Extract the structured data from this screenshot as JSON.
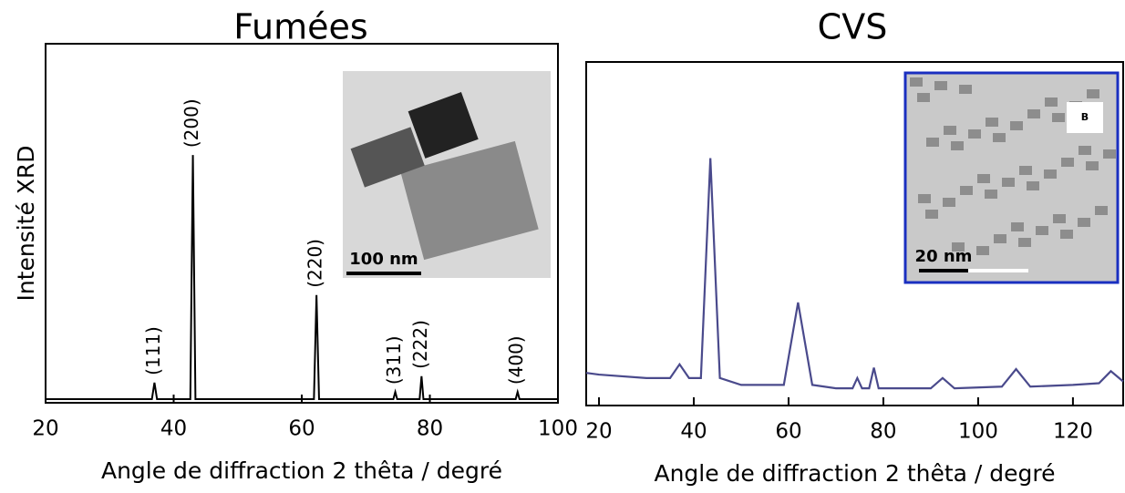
{
  "chart_data": [
    {
      "type": "line",
      "title": "Fumées",
      "x_label": "Angle de diffraction 2 thêta / degré",
      "y_label": "Intensité XRD",
      "xlim": [
        20,
        100
      ],
      "xticks": [
        20,
        40,
        60,
        80,
        100
      ],
      "ylim": [
        0,
        100
      ],
      "series": [
        {
          "color": "#000000",
          "x": [
            20,
            36.6,
            37,
            37.4,
            42.6,
            43,
            43.4,
            61.9,
            62.3,
            62.7,
            74.3,
            74.6,
            74.9,
            78.4,
            78.7,
            79.0,
            93.4,
            93.7,
            94.0,
            100
          ],
          "values": [
            1,
            1,
            5.6,
            1,
            1,
            69,
            1,
            1,
            30,
            1,
            1,
            3,
            1,
            1,
            7.4,
            1,
            1,
            3,
            1,
            1
          ]
        }
      ],
      "annotations": [
        {
          "text": "(111)",
          "x": 37
        },
        {
          "text": "(200)",
          "x": 43
        },
        {
          "text": "(220)",
          "x": 62.3
        },
        {
          "text": "(311)",
          "x": 74.6
        },
        {
          "text": "(222)",
          "x": 78.7
        },
        {
          "text": "(400)",
          "x": 93.7
        }
      ],
      "inset_scale_bar": "100 nm"
    },
    {
      "type": "line",
      "title": "CVS",
      "x_label": "Angle de diffraction 2 thêta / degré",
      "xlim": [
        17.3,
        130.6
      ],
      "xticks": [
        20,
        40,
        60,
        80,
        100,
        120
      ],
      "ylim": [
        0,
        100
      ],
      "series": [
        {
          "color": "#4a4a8c",
          "x": [
            17.3,
            20,
            30,
            35,
            37,
            39,
            41.5,
            43.5,
            45.5,
            50,
            59,
            62,
            65,
            70,
            73.5,
            74.5,
            75.5,
            77,
            78,
            79,
            90,
            92.5,
            95,
            105,
            108,
            111,
            120,
            125.5,
            128,
            130.6
          ],
          "values": [
            9.5,
            9,
            8,
            8,
            12,
            8,
            8,
            72,
            8,
            6,
            6,
            30,
            6,
            5,
            5,
            8,
            5,
            5,
            11,
            5,
            5,
            8,
            5,
            5.5,
            10.6,
            5.5,
            6,
            6.5,
            10,
            7
          ]
        }
      ],
      "inset_scale_bar": "20 nm",
      "inset_label": "B"
    }
  ]
}
